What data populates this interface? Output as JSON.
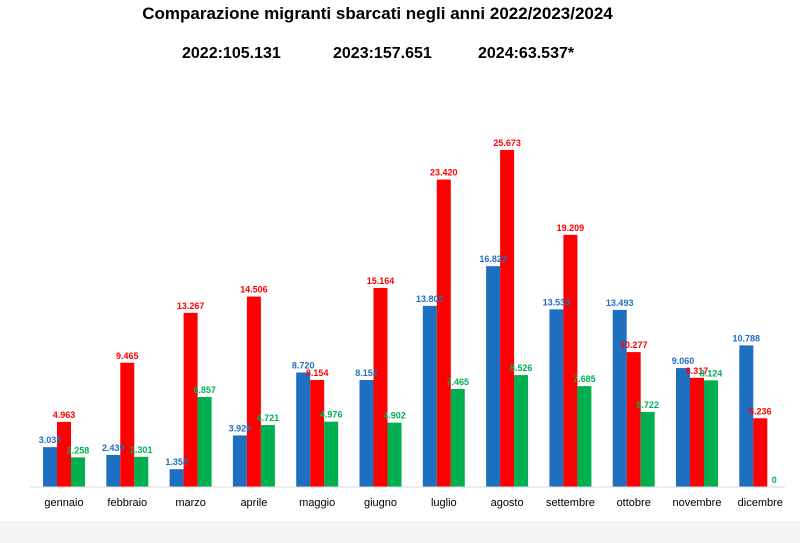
{
  "title": "Comparazione migranti sbarcati negli anni 2022/2023/2024",
  "totals": [
    {
      "label": "2022:105.131"
    },
    {
      "label": "2023:157.651"
    },
    {
      "label": "2024:63.537*"
    }
  ],
  "chart_data": {
    "type": "bar",
    "title": "Comparazione migranti sbarcati negli anni 2022/2023/2024",
    "categories": [
      "gennaio",
      "febbraio",
      "marzo",
      "aprile",
      "maggio",
      "giugno",
      "luglio",
      "agosto",
      "settembre",
      "ottobre",
      "novembre",
      "dicembre"
    ],
    "series": [
      {
        "name": "2022",
        "color": "#1f6fc0",
        "values": [
          3035,
          2439,
          1358,
          3929,
          8720,
          8152,
          13802,
          16822,
          13533,
          13493,
          9060,
          10788
        ],
        "labels": [
          "3.035",
          "2.439",
          "1.358",
          "3.929",
          "8.720",
          "8.152",
          "13.802",
          "16.822",
          "13.533",
          "13.493",
          "9.060",
          "10.788"
        ]
      },
      {
        "name": "2023",
        "color": "#ff0000",
        "values": [
          4963,
          9465,
          13267,
          14506,
          8154,
          15164,
          23420,
          25673,
          19209,
          10277,
          8317,
          5236
        ],
        "labels": [
          "4.963",
          "9.465",
          "13.267",
          "14.506",
          "8.154",
          "15.164",
          "23.420",
          "25.673",
          "19.209",
          "10.277",
          "8.317",
          "5.236"
        ]
      },
      {
        "name": "2024",
        "color": "#00b050",
        "values": [
          2258,
          2301,
          6857,
          4721,
          4976,
          4902,
          7465,
          8526,
          7685,
          5722,
          8124,
          0
        ],
        "labels": [
          "2.258",
          "2.301",
          "6.857",
          "4.721",
          "4.976",
          "4.902",
          "7.465",
          "8.526",
          "7.685",
          "5.722",
          "8.124",
          "0"
        ]
      }
    ],
    "xlabel": "",
    "ylabel": "",
    "ylim": [
      0,
      26000
    ],
    "grid": false,
    "legend": "bottom"
  }
}
